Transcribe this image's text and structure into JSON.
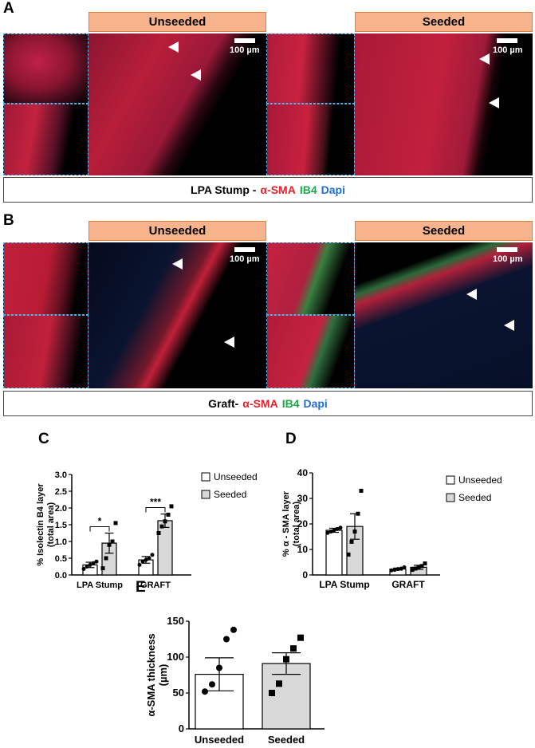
{
  "panelA": {
    "letter": "A",
    "label_unseeded": "Unseeded",
    "label_seeded": "Seeded",
    "scale": "100 µm",
    "caption": {
      "prefix": "LPA Stump - ",
      "stain1": "α-SMA",
      "stain2": "IB4",
      "stain3": "Dapi"
    }
  },
  "panelB": {
    "letter": "B",
    "label_unseeded": "Unseeded",
    "label_seeded": "Seeded",
    "scale": "100 µm",
    "caption": {
      "prefix": "Graft- ",
      "stain1": "α-SMA",
      "stain2": "IB4",
      "stain3": "Dapi"
    }
  },
  "colors": {
    "unseeded_bar": "#ffffff",
    "seeded_bar": "#d9d9d9",
    "header_fill": "#f7b48c",
    "header_border": "#e0803f"
  },
  "chart_data": [
    {
      "id": "C",
      "type": "bar",
      "ylabel": "% Isolectin B4 layer\n(total area)",
      "ylim": [
        0,
        3.0
      ],
      "yticks": [
        "0.0",
        "0.5",
        "1.0",
        "1.5",
        "2.0",
        "2.5",
        "3.0"
      ],
      "categories": [
        "LPA  Stump",
        "GRAFT"
      ],
      "series": [
        {
          "name": "Unseeded",
          "values": [
            0.3,
            0.45
          ],
          "err": [
            0.08,
            0.1
          ],
          "points": [
            [
              0.18,
              0.25,
              0.3,
              0.35,
              0.4
            ],
            [
              0.3,
              0.4,
              0.45,
              0.5,
              0.6
            ]
          ]
        },
        {
          "name": "Seeded",
          "values": [
            0.95,
            1.62
          ],
          "err": [
            0.3,
            0.2
          ],
          "points": [
            [
              0.2,
              0.5,
              0.9,
              1.0,
              1.55
            ],
            [
              1.25,
              1.45,
              1.6,
              1.8,
              2.05
            ]
          ]
        }
      ],
      "significance": [
        "*",
        "***"
      ],
      "legend": "right"
    },
    {
      "id": "D",
      "type": "bar",
      "ylabel": "% α - SMA layer\n(total area)",
      "ylim": [
        0,
        40
      ],
      "yticks": [
        "0",
        "10",
        "20",
        "30",
        "40"
      ],
      "categories": [
        "LPA  Stump",
        "GRAFT"
      ],
      "series": [
        {
          "name": "Unseeded",
          "values": [
            17.5,
            2.3
          ],
          "err": [
            0.8,
            0.4
          ],
          "points": [
            [
              16.5,
              17,
              17.5,
              18,
              18.5
            ],
            [
              1.8,
              2,
              2.3,
              2.5,
              3
            ]
          ]
        },
        {
          "name": "Seeded",
          "values": [
            19.0,
            3.0
          ],
          "err": [
            5.0,
            0.8
          ],
          "points": [
            [
              8,
              13,
              17,
              24,
              33
            ],
            [
              2,
              2.5,
              3,
              3.5,
              4.5
            ]
          ]
        }
      ],
      "legend": "right"
    },
    {
      "id": "E",
      "type": "bar",
      "ylabel": "α-SMA thickness\n(µm)",
      "ylim": [
        0,
        150
      ],
      "yticks": [
        "0",
        "50",
        "100",
        "150"
      ],
      "categories": [
        "Unseeded",
        "Seeded"
      ],
      "series": [
        {
          "name": "",
          "values": [
            76,
            91
          ],
          "err": [
            23,
            15
          ],
          "points": [
            [
              52,
              62,
              85,
              125,
              138
            ],
            [
              50,
              63,
              97,
              112,
              127
            ]
          ]
        }
      ]
    }
  ],
  "letters": {
    "C": "C",
    "D": "D",
    "E": "E"
  }
}
